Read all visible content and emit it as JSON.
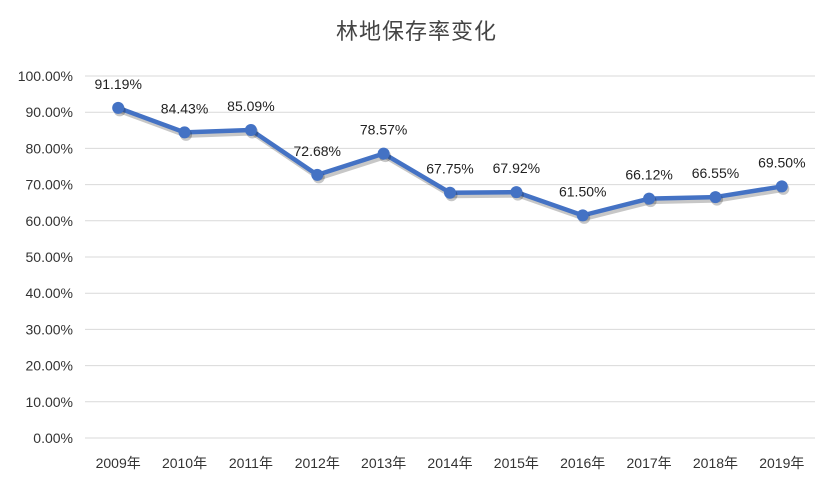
{
  "chart_data": {
    "type": "line",
    "title": "林地保存率变化",
    "categories": [
      "2009年",
      "2010年",
      "2011年",
      "2012年",
      "2013年",
      "2014年",
      "2015年",
      "2016年",
      "2017年",
      "2018年",
      "2019年"
    ],
    "series": [
      {
        "values": [
          91.19,
          84.43,
          85.09,
          72.68,
          78.57,
          67.75,
          67.92,
          61.5,
          66.12,
          66.55,
          69.5
        ],
        "labels": [
          "91.19%",
          "84.43%",
          "85.09%",
          "72.68%",
          "78.57%",
          "67.75%",
          "67.92%",
          "61.50%",
          "66.12%",
          "66.55%",
          "69.50%"
        ],
        "color": "#4472C4"
      }
    ],
    "ylim": [
      0,
      100
    ],
    "yticks": [
      "0.00%",
      "10.00%",
      "20.00%",
      "30.00%",
      "40.00%",
      "50.00%",
      "60.00%",
      "70.00%",
      "80.00%",
      "90.00%",
      "100.00%"
    ],
    "grid": true,
    "gridColor": "#d9d9d9",
    "xlabel": "",
    "ylabel": ""
  }
}
